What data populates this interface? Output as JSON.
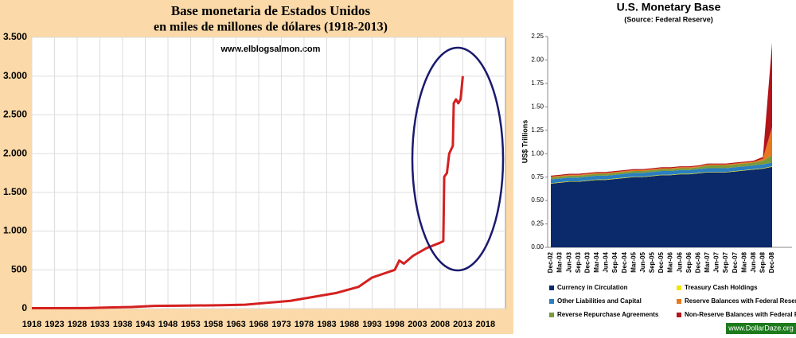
{
  "chart_data": [
    {
      "type": "line",
      "title": "Base monetaria de Estados Unidos",
      "subtitle": "en miles de millones de dólares (1918-2013)",
      "annotation": "www.elblogsalmon.com",
      "color": "#d42020",
      "x": [
        1918,
        1930,
        1940,
        1945,
        1950,
        1960,
        1965,
        1970,
        1975,
        1980,
        1985,
        1990,
        1993,
        1995,
        1998,
        1999,
        2000,
        2002,
        2005,
        2008,
        2008.7,
        2008.9,
        2009.5,
        2010,
        2010.8,
        2011,
        2011.5,
        2012,
        2012.5,
        2013
      ],
      "values": [
        5,
        7,
        20,
        35,
        37,
        43,
        50,
        75,
        100,
        150,
        200,
        280,
        400,
        440,
        500,
        620,
        580,
        680,
        780,
        850,
        870,
        1700,
        1750,
        2000,
        2100,
        2650,
        2700,
        2650,
        2700,
        3000
      ],
      "xlim": [
        1918,
        2022.4
      ],
      "xticks": [
        1918,
        1923,
        1928,
        1933,
        1938,
        1943,
        1948,
        1953,
        1958,
        1963,
        1968,
        1973,
        1978,
        1983,
        1988,
        1993,
        1998,
        2003,
        2008,
        2013,
        2018
      ],
      "ylim": [
        0,
        3500
      ],
      "yticks": [
        0,
        500,
        {
          "value": 1000,
          "label": "1.000"
        },
        {
          "value": 1500,
          "label": "1.500"
        },
        {
          "value": 2000,
          "label": "2.000"
        },
        {
          "value": 2500,
          "label": "2.500"
        },
        {
          "value": 3000,
          "label": "3.000"
        },
        {
          "value": 3500,
          "label": "3.500"
        }
      ],
      "grid": true
    },
    {
      "type": "stacked_area",
      "title": "U.S. Monetary Base",
      "subtitle": "(Source: Federal Reserve)",
      "y_label": "US$ Trillions",
      "annotation": "www.DollarDaze.org",
      "categories": [
        "Dec-02",
        "Mar-03",
        "Jun-03",
        "Sep-03",
        "Dec-03",
        "Mar-04",
        "Jun-04",
        "Sep-04",
        "Dec-04",
        "Mar-05",
        "Jun-05",
        "Sep-05",
        "Dec-05",
        "Mar-06",
        "Jun-06",
        "Sep-06",
        "Dec-06",
        "Mar-07",
        "Jun-07",
        "Sep-07",
        "Dec-07",
        "Mar-08",
        "Jun-08",
        "Sep-08",
        "Dec-08"
      ],
      "series": [
        {
          "name": "Currency in Circulation",
          "color": "#0a2a6b",
          "values": [
            0.68,
            0.69,
            0.7,
            0.7,
            0.71,
            0.72,
            0.72,
            0.73,
            0.74,
            0.75,
            0.75,
            0.76,
            0.77,
            0.77,
            0.78,
            0.78,
            0.79,
            0.8,
            0.8,
            0.8,
            0.81,
            0.82,
            0.83,
            0.84,
            0.86
          ]
        },
        {
          "name": "Treasury Cash Holdings",
          "color": "#f2e600",
          "values": [
            0.005,
            0.005,
            0.005,
            0.005,
            0.005,
            0.005,
            0.005,
            0.005,
            0.005,
            0.005,
            0.005,
            0.005,
            0.005,
            0.005,
            0.005,
            0.005,
            0.005,
            0.005,
            0.005,
            0.005,
            0.005,
            0.005,
            0.005,
            0.005,
            0.005
          ]
        },
        {
          "name": "Other Liabilities and Capital",
          "color": "#2b7fc1",
          "values": [
            0.04,
            0.04,
            0.04,
            0.04,
            0.04,
            0.04,
            0.04,
            0.04,
            0.04,
            0.04,
            0.04,
            0.04,
            0.04,
            0.04,
            0.04,
            0.04,
            0.04,
            0.04,
            0.04,
            0.04,
            0.04,
            0.04,
            0.04,
            0.04,
            0.04
          ]
        },
        {
          "name": "Reverse Repurchase Agreements",
          "color": "#7a9a3a",
          "values": [
            0.02,
            0.02,
            0.02,
            0.02,
            0.02,
            0.02,
            0.02,
            0.02,
            0.02,
            0.02,
            0.02,
            0.02,
            0.02,
            0.02,
            0.02,
            0.02,
            0.02,
            0.03,
            0.03,
            0.03,
            0.03,
            0.03,
            0.03,
            0.04,
            0.08
          ]
        },
        {
          "name": "Reserve Balances  with Federal Reserve Banks",
          "color": "#e8781e",
          "values": [
            0.01,
            0.01,
            0.01,
            0.01,
            0.01,
            0.01,
            0.01,
            0.01,
            0.01,
            0.01,
            0.01,
            0.01,
            0.01,
            0.01,
            0.01,
            0.01,
            0.01,
            0.01,
            0.01,
            0.01,
            0.01,
            0.01,
            0.01,
            0.02,
            0.3
          ]
        },
        {
          "name": "Non-Reserve Balances  with Federal Reserve Banks",
          "color": "#b3141a",
          "values": [
            0.01,
            0.01,
            0.01,
            0.01,
            0.01,
            0.01,
            0.01,
            0.01,
            0.01,
            0.01,
            0.01,
            0.01,
            0.01,
            0.01,
            0.01,
            0.01,
            0.01,
            0.01,
            0.01,
            0.01,
            0.01,
            0.01,
            0.01,
            0.02,
            0.9
          ]
        }
      ],
      "ylim": [
        0,
        2.25
      ],
      "yticks": [
        {
          "value": 0,
          "label": "0.00"
        },
        0.25,
        {
          "value": 0.5,
          "label": "0.50"
        },
        0.75,
        {
          "value": 1,
          "label": "1.00"
        },
        1.25,
        {
          "value": 1.5,
          "label": "1.50"
        },
        1.75,
        {
          "value": 2,
          "label": "2.00"
        },
        2.25
      ]
    }
  ]
}
